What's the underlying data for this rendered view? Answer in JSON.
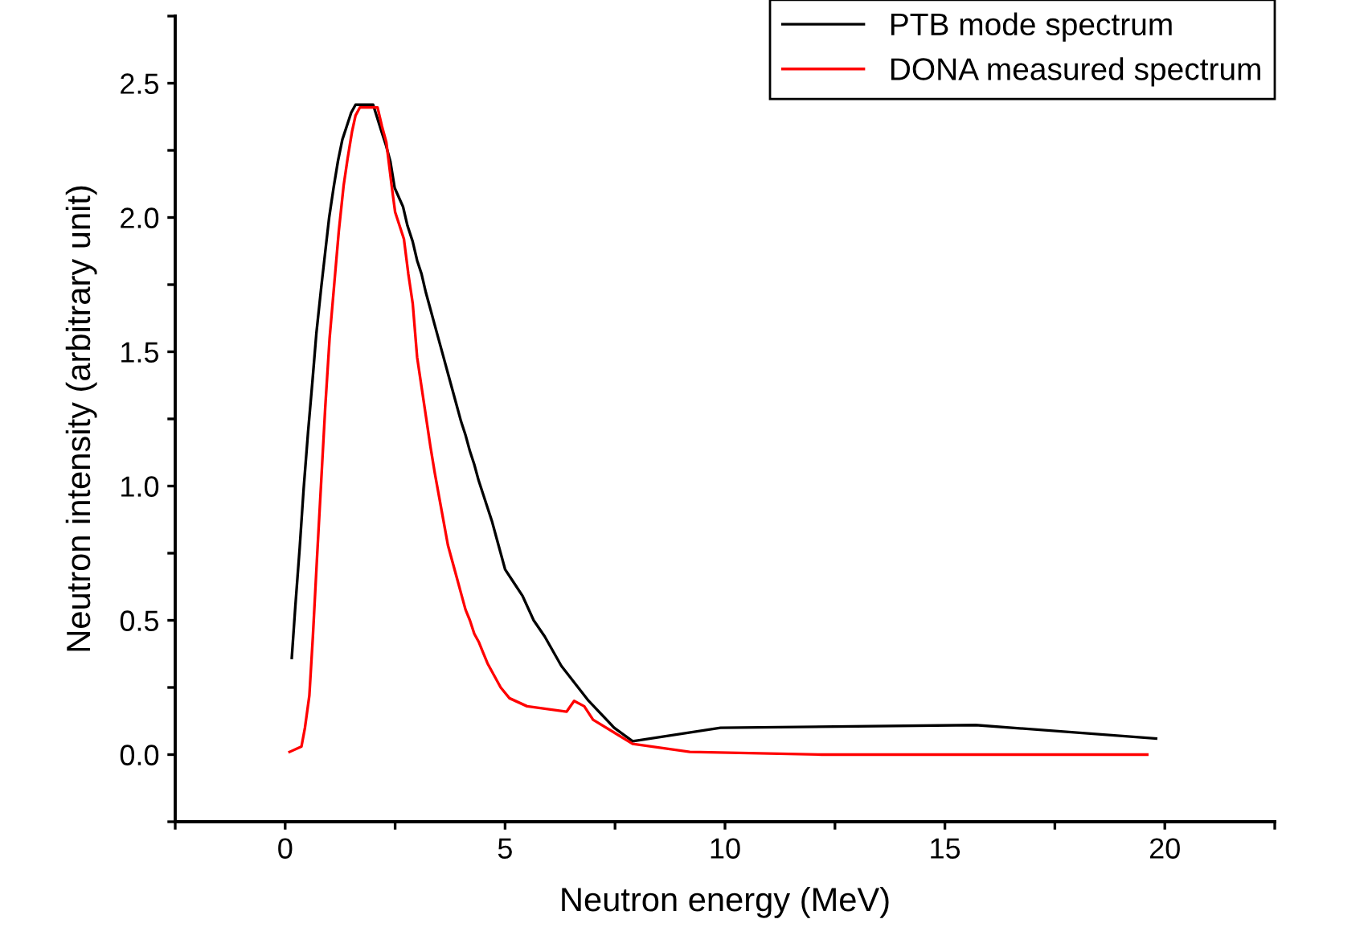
{
  "chart_data": {
    "type": "line",
    "xlabel": "Neutron energy (MeV)",
    "ylabel": "Neutron intensity (arbitrary unit)",
    "xlim": [
      -2.5,
      22.5
    ],
    "ylim": [
      -0.25,
      2.75
    ],
    "xticks": [
      {
        "value": -2.5,
        "label": null
      },
      0,
      {
        "value": 2.5,
        "label": null
      },
      5,
      {
        "value": 7.5,
        "label": null
      },
      10,
      {
        "value": 12.5,
        "label": null
      },
      15,
      {
        "value": 17.5,
        "label": null
      },
      20,
      {
        "value": 22.5,
        "label": null
      }
    ],
    "yticks": [
      {
        "value": -0.25,
        "label": null
      },
      {
        "value": 0,
        "label": "0.0"
      },
      {
        "value": 0.25,
        "label": null
      },
      0.5,
      {
        "value": 0.75,
        "label": null
      },
      {
        "value": 1,
        "label": "1.0"
      },
      {
        "value": 1.25,
        "label": null
      },
      1.5,
      {
        "value": 1.75,
        "label": null
      },
      {
        "value": 2,
        "label": "2.0"
      },
      {
        "value": 2.25,
        "label": null
      },
      2.5,
      {
        "value": 2.75,
        "label": null
      }
    ],
    "grid": false,
    "legend": "top right",
    "marker": "none",
    "line_style": "solid",
    "series": [
      {
        "name": "PTB mode spectrum",
        "color": "#000000",
        "x": [
          0.15,
          0.23,
          0.33,
          0.42,
          0.52,
          0.62,
          0.71,
          0.82,
          0.91,
          1.0,
          1.1,
          1.2,
          1.3,
          1.4,
          1.5,
          1.6,
          1.8,
          2.0,
          2.19,
          2.29,
          2.39,
          2.49,
          2.68,
          2.78,
          2.9,
          3.0,
          3.1,
          3.2,
          3.3,
          3.4,
          3.5,
          3.6,
          3.7,
          3.8,
          3.9,
          4.0,
          4.1,
          4.2,
          4.3,
          4.4,
          4.5,
          4.6,
          4.7,
          4.8,
          4.9,
          5.0,
          5.2,
          5.4,
          5.65,
          5.9,
          6.28,
          6.9,
          7.48,
          7.9,
          9.9,
          15.7,
          19.8
        ],
        "values": [
          0.36,
          0.55,
          0.77,
          0.99,
          1.2,
          1.39,
          1.57,
          1.74,
          1.87,
          2.0,
          2.11,
          2.21,
          2.29,
          2.34,
          2.39,
          2.42,
          2.42,
          2.42,
          2.32,
          2.27,
          2.21,
          2.11,
          2.04,
          1.97,
          1.91,
          1.84,
          1.79,
          1.72,
          1.66,
          1.6,
          1.54,
          1.48,
          1.42,
          1.36,
          1.3,
          1.24,
          1.19,
          1.13,
          1.08,
          1.02,
          0.97,
          0.92,
          0.87,
          0.81,
          0.75,
          0.69,
          0.64,
          0.59,
          0.5,
          0.44,
          0.33,
          0.2,
          0.1,
          0.05,
          0.1,
          0.11,
          0.06
        ]
      },
      {
        "name": "DONA measured spectrum",
        "color": "#ff0000",
        "x": [
          0.1,
          0.37,
          0.45,
          0.55,
          0.63,
          0.72,
          0.82,
          0.91,
          1.01,
          1.12,
          1.22,
          1.33,
          1.42,
          1.52,
          1.6,
          1.7,
          2.1,
          2.2,
          2.3,
          2.42,
          2.5,
          2.7,
          2.8,
          2.9,
          3.0,
          3.1,
          3.2,
          3.3,
          3.4,
          3.5,
          3.6,
          3.7,
          3.8,
          3.9,
          4.0,
          4.1,
          4.2,
          4.3,
          4.4,
          4.5,
          4.6,
          4.7,
          4.8,
          4.9,
          5.1,
          5.5,
          6.4,
          6.57,
          6.8,
          7.0,
          7.5,
          7.9,
          9.2,
          12.2,
          19.6
        ],
        "values": [
          0.01,
          0.03,
          0.1,
          0.22,
          0.44,
          0.72,
          1.02,
          1.29,
          1.55,
          1.76,
          1.95,
          2.12,
          2.22,
          2.32,
          2.38,
          2.41,
          2.41,
          2.34,
          2.28,
          2.12,
          2.02,
          1.92,
          1.79,
          1.68,
          1.48,
          1.37,
          1.26,
          1.15,
          1.05,
          0.96,
          0.87,
          0.78,
          0.72,
          0.66,
          0.6,
          0.54,
          0.5,
          0.45,
          0.42,
          0.38,
          0.34,
          0.31,
          0.28,
          0.25,
          0.21,
          0.18,
          0.16,
          0.2,
          0.18,
          0.13,
          0.08,
          0.04,
          0.01,
          0.0,
          0.0
        ]
      }
    ]
  }
}
